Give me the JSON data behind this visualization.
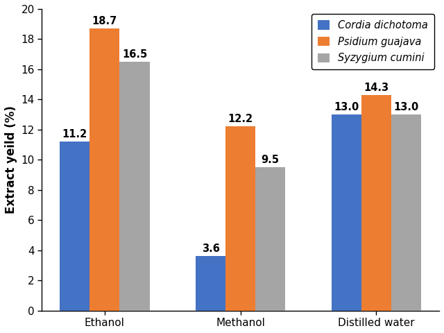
{
  "categories": [
    "Ethanol",
    "Methanol",
    "Distilled water"
  ],
  "series": [
    {
      "name": "Cordia dichotoma",
      "values": [
        11.2,
        3.6,
        13.0
      ],
      "color": "#4472C4"
    },
    {
      "name": "Psidium guajava",
      "values": [
        18.7,
        12.2,
        14.3
      ],
      "color": "#ED7D31"
    },
    {
      "name": "Syzygium cumini",
      "values": [
        16.5,
        9.5,
        13.0
      ],
      "color": "#A5A5A5"
    }
  ],
  "ylabel": "Extract yeild (%)",
  "ylim": [
    0,
    20
  ],
  "yticks": [
    0,
    2,
    4,
    6,
    8,
    10,
    12,
    14,
    16,
    18,
    20
  ],
  "bar_width": 0.22,
  "annotation_fontsize": 10.5,
  "axis_fontsize": 12,
  "tick_fontsize": 11,
  "legend_fontsize": 10.5,
  "figsize": [
    6.4,
    4.8
  ],
  "dpi": 100
}
